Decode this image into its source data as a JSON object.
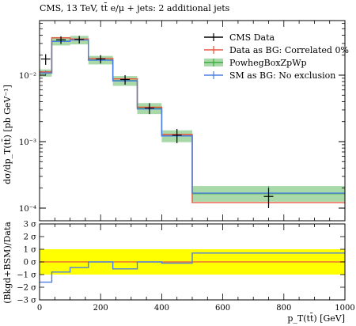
{
  "chart_data": [
    {
      "type": "step-line",
      "title": "CMS, 13 TeV, tt̄ e/μ + jets: 2 additional jets",
      "ylabel": "dσ/dp_T(tt̄) [pb GeV⁻¹]",
      "xlim": [
        0,
        1000
      ],
      "ylim": [
        0.0001,
        0.05
      ],
      "yscale": "log",
      "x_bin_edges": [
        0,
        40,
        100,
        160,
        240,
        320,
        400,
        500,
        1000
      ],
      "y_ticks": [
        {
          "value": 0.0001,
          "label": "10⁻⁴"
        },
        {
          "value": 0.001,
          "label": "10⁻³"
        },
        {
          "value": 0.01,
          "label": "10⁻²"
        }
      ],
      "legend_position": "top-right",
      "series": [
        {
          "name": "CMS Data",
          "color": "#000000",
          "kind": "points",
          "x": [
            20,
            70,
            130,
            200,
            280,
            360,
            450,
            750
          ],
          "values": [
            0.0175,
            0.034,
            0.0345,
            0.0175,
            0.0086,
            0.0032,
            0.00125,
            0.00015
          ],
          "err_low": [
            0.0032,
            0.0045,
            0.0045,
            0.0025,
            0.0014,
            0.0006,
            0.0003,
            5e-05
          ],
          "err_high": [
            0.0032,
            0.0045,
            0.0045,
            0.0025,
            0.0014,
            0.0006,
            0.0003,
            5e-05
          ]
        },
        {
          "name": "Data as BG: Correlated 0%",
          "color": "#e8543e",
          "kind": "step",
          "values": [
            0.0112,
            0.0365,
            0.035,
            0.0178,
            0.0088,
            0.0033,
            0.00128,
            0.000121
          ]
        },
        {
          "name": "PowhegBoxZpWp",
          "color": "#3cad3c",
          "band_color": "#a9d9a9",
          "kind": "step-band",
          "values": [
            0.0108,
            0.0325,
            0.034,
            0.017,
            0.0083,
            0.0032,
            0.00123,
            0.000165
          ],
          "band_low": [
            0.0095,
            0.028,
            0.029,
            0.0145,
            0.0069,
            0.0026,
            0.00098,
            0.000125
          ],
          "band_high": [
            0.0122,
            0.0375,
            0.039,
            0.0195,
            0.0097,
            0.0038,
            0.00148,
            0.000215
          ]
        },
        {
          "name": "SM as BG: No exclusion",
          "color": "#4d7ee3",
          "kind": "step-with-errors",
          "values": [
            0.0108,
            0.0322,
            0.0338,
            0.0168,
            0.0082,
            0.0031,
            0.00122,
            0.000168
          ],
          "err": [
            0.0009,
            0.0025,
            0.0025,
            0.0013,
            0.0007,
            0.00028,
            0.0001,
            4.5e-05
          ]
        }
      ]
    },
    {
      "type": "step-line",
      "ylabel": "(Bkgd+BSM)/Data",
      "xlabel": "p_T(tt̄) [GeV]",
      "xlim": [
        0,
        1000
      ],
      "ylim": [
        -3,
        3
      ],
      "x_ticks": [
        0,
        200,
        400,
        600,
        800,
        1000
      ],
      "y_ticks": [
        {
          "value": 3,
          "label": "3 σ"
        },
        {
          "value": 2,
          "label": "2 σ"
        },
        {
          "value": 1,
          "label": "1 σ"
        },
        {
          "value": 0,
          "label": "0 σ"
        },
        {
          "value": -1,
          "label": "−1 σ"
        },
        {
          "value": -2,
          "label": "−2 σ"
        },
        {
          "value": -3,
          "label": "−3 σ"
        }
      ],
      "band": {
        "low": -1,
        "high": 1,
        "color": "#ffff00"
      },
      "reference_line": {
        "value": 0,
        "color": "#e8543e"
      },
      "x_bin_edges": [
        0,
        40,
        100,
        160,
        240,
        320,
        400,
        500,
        1000
      ],
      "series": [
        {
          "name": "SM as BG: No exclusion",
          "color": "#4d7ee3",
          "values": [
            -1.6,
            -0.8,
            -0.45,
            0.0,
            -0.55,
            0.0,
            -0.1,
            0.7
          ]
        }
      ]
    }
  ]
}
